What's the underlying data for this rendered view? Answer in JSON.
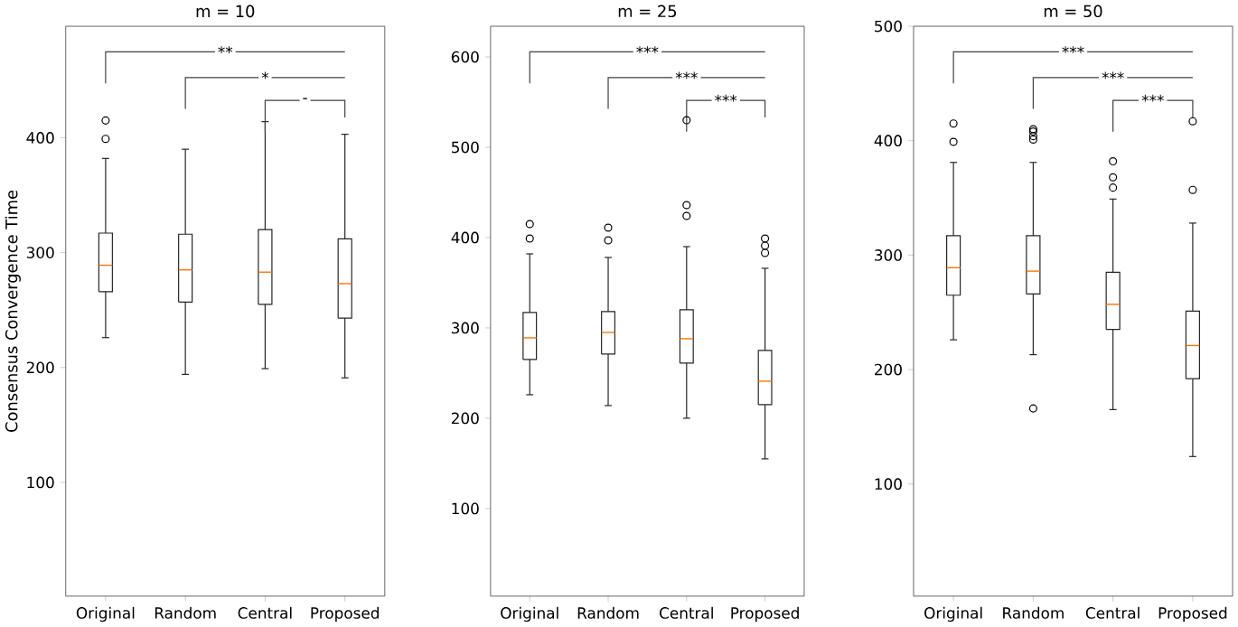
{
  "chart_data": [
    {
      "type": "box",
      "title": "m = 10",
      "ylabel": "Consensus Convergence Time",
      "categories": [
        "Original",
        "Random",
        "Central",
        "Proposed"
      ],
      "boxes": [
        {
          "low": 226,
          "q1": 266,
          "median": 289,
          "q3": 317,
          "high": 382,
          "outliers": [
            399,
            415
          ]
        },
        {
          "low": 194,
          "q1": 257,
          "median": 285,
          "q3": 316,
          "high": 390
        },
        {
          "low": 199,
          "q1": 255,
          "median": 283,
          "q3": 320,
          "high": 414
        },
        {
          "low": 191,
          "q1": 243,
          "median": 273,
          "q3": 312,
          "high": 403
        }
      ],
      "ylim": [
        1,
        497
      ],
      "yticks": [
        100,
        200,
        300,
        400
      ],
      "annotations": [
        "**",
        "*",
        "-"
      ],
      "grid": false
    },
    {
      "type": "box",
      "title": "m = 25",
      "categories": [
        "Original",
        "Random",
        "Central",
        "Proposed"
      ],
      "boxes": [
        {
          "low": 226,
          "q1": 265,
          "median": 289,
          "q3": 317,
          "high": 382,
          "outliers": [
            399,
            415
          ]
        },
        {
          "low": 214,
          "q1": 271,
          "median": 295,
          "q3": 318,
          "high": 378,
          "outliers": [
            397,
            411
          ]
        },
        {
          "low": 200,
          "q1": 261,
          "median": 288,
          "q3": 320,
          "high": 390,
          "outliers": [
            424,
            436,
            530
          ]
        },
        {
          "low": 155,
          "q1": 215,
          "median": 241,
          "q3": 275,
          "high": 366,
          "outliers": [
            383,
            391,
            399
          ]
        }
      ],
      "ylim": [
        3,
        634
      ],
      "yticks": [
        100,
        200,
        300,
        400,
        500,
        600
      ],
      "annotations": [
        "***",
        "***",
        "***"
      ],
      "grid": false
    },
    {
      "type": "box",
      "title": "m = 50",
      "categories": [
        "Original",
        "Random",
        "Central",
        "Proposed"
      ],
      "boxes": [
        {
          "low": 226,
          "q1": 265,
          "median": 289,
          "q3": 317,
          "high": 381,
          "outliers": [
            399,
            415
          ]
        },
        {
          "low": 213,
          "q1": 266,
          "median": 286,
          "q3": 317,
          "high": 381,
          "outliers": [
            166,
            401,
            404,
            408,
            410
          ]
        },
        {
          "low": 165,
          "q1": 235,
          "median": 257,
          "q3": 285,
          "high": 349,
          "outliers": [
            359,
            368,
            382
          ]
        },
        {
          "low": 124,
          "q1": 192,
          "median": 221,
          "q3": 251,
          "high": 328,
          "outliers": [
            357,
            417
          ]
        }
      ],
      "ylim": [
        2,
        500
      ],
      "yticks": [
        100,
        200,
        300,
        400,
        500
      ],
      "annotations": [
        "***",
        "***",
        "***"
      ],
      "grid": false
    }
  ]
}
